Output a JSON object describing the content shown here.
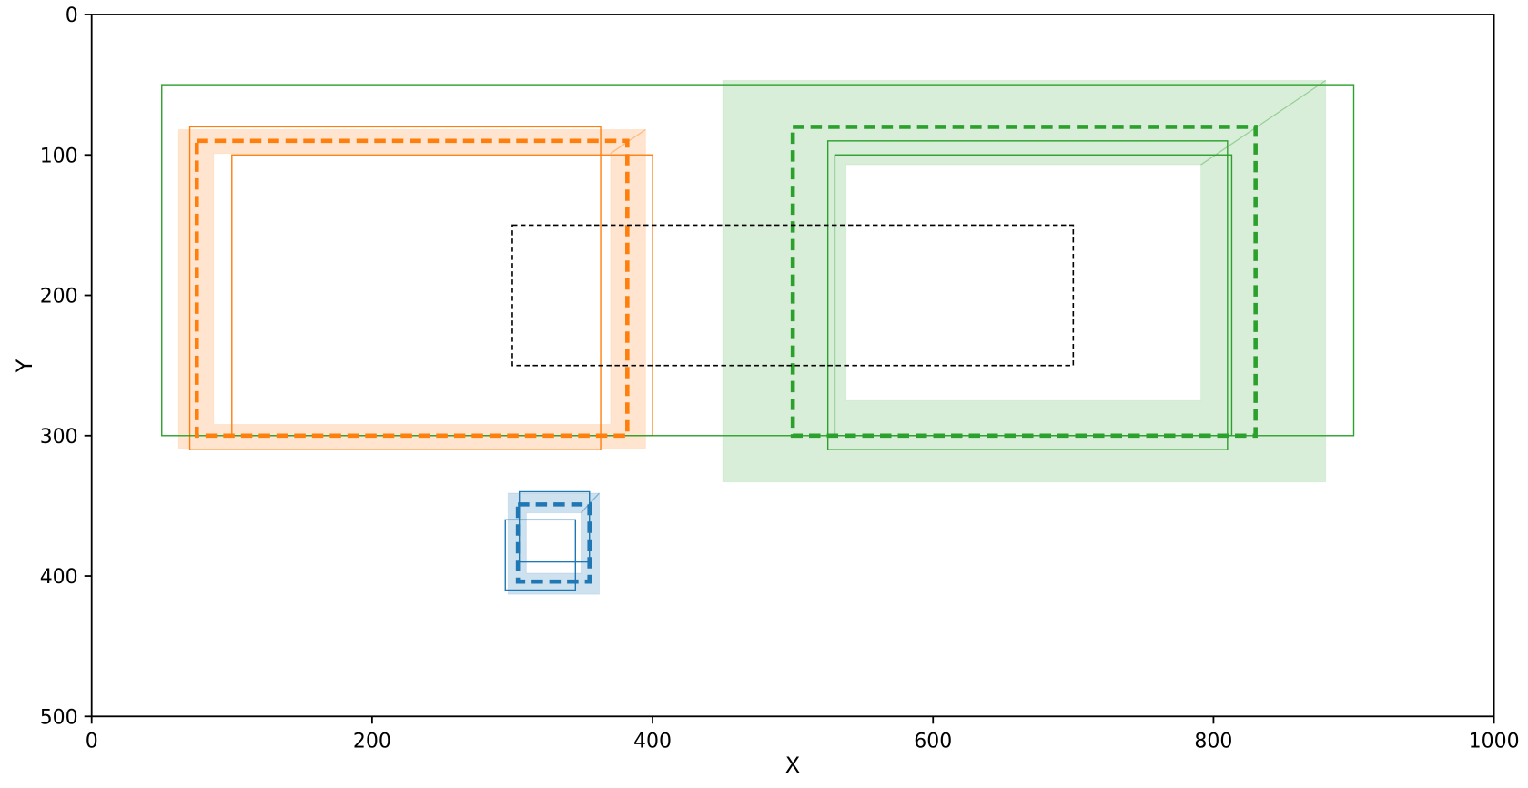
{
  "figure": {
    "background": "#ffffff"
  },
  "chart_data": {
    "type": "bounding-box-overlay",
    "title": "",
    "xlabel": "X",
    "ylabel": "Y",
    "xlim": [
      0,
      1000
    ],
    "ylim_top_to_bottom": [
      0,
      500
    ],
    "x_ticks": [
      "0",
      "200",
      "400",
      "600",
      "800",
      "1000"
    ],
    "y_ticks": [
      "0",
      "100",
      "200",
      "300",
      "400",
      "500"
    ],
    "grid": false,
    "legend": false,
    "axes_color": "#000000",
    "reference_box": {
      "name": "black-dashed-reference-box",
      "color": "#000000",
      "style": "thin-dashed",
      "xyxy": [
        300,
        150,
        700,
        250
      ]
    },
    "groups": [
      {
        "name": "orange",
        "color": "#ff7f0e",
        "band_alpha": 0.2,
        "sample_boxes_xyxy": [
          [
            70,
            80,
            363,
            310
          ],
          [
            100,
            100,
            400,
            300
          ]
        ],
        "fused_box_xyxy": [
          75,
          90,
          382,
          300
        ],
        "band_outer_xyxy": [
          62,
          82,
          395,
          309
        ],
        "band_inner_xyxy": [
          87,
          99,
          370,
          292
        ]
      },
      {
        "name": "green",
        "color": "#2ca02c",
        "band_alpha": 0.18,
        "sample_boxes_xyxy": [
          [
            50,
            50,
            900,
            300
          ],
          [
            525,
            90,
            810,
            310
          ],
          [
            530,
            100,
            813,
            300
          ]
        ],
        "fused_box_xyxy": [
          500,
          80,
          830,
          300
        ],
        "band_outer_xyxy": [
          450,
          47,
          880,
          333
        ],
        "band_inner_xyxy": [
          538,
          107,
          791,
          275
        ]
      },
      {
        "name": "blue",
        "color": "#1f77b4",
        "band_alpha": 0.22,
        "sample_boxes_xyxy": [
          [
            305,
            340,
            355,
            390
          ],
          [
            295,
            360,
            345,
            410
          ]
        ],
        "fused_box_xyxy": [
          304,
          349,
          355,
          404
        ],
        "band_outer_xyxy": [
          297,
          341,
          362,
          413
        ],
        "band_inner_xyxy": [
          310,
          355,
          349,
          398
        ]
      }
    ]
  }
}
